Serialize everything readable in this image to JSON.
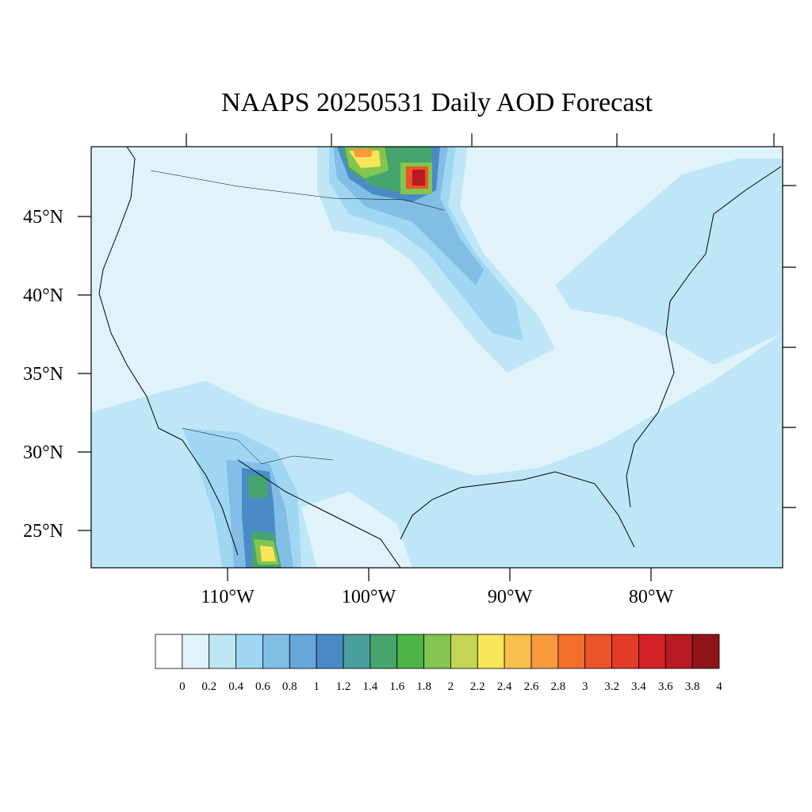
{
  "title": "NAAPS 20250531 Daily AOD Forecast",
  "latitude_labels": [
    "45°N",
    "40°N",
    "35°N",
    "30°N",
    "25°N"
  ],
  "longitude_labels": [
    "110°W",
    "100°W",
    "90°W",
    "80°W"
  ],
  "colorbar": {
    "levels": [
      0,
      0.2,
      0.4,
      0.6,
      0.8,
      1,
      1.2,
      1.4,
      1.6,
      1.8,
      2,
      2.2,
      2.4,
      2.6,
      2.8,
      3,
      3.2,
      3.4,
      3.6,
      3.8,
      4
    ],
    "colors": [
      "#ffffff",
      "#e0f3fb",
      "#bfe6f7",
      "#9fd7f3",
      "#82bde6",
      "#67a7da",
      "#4a8bc7",
      "#4b9e9e",
      "#46a56d",
      "#4db446",
      "#84c450",
      "#c2d654",
      "#f7e657",
      "#f8c04b",
      "#f79a3e",
      "#f36e2b",
      "#ea5428",
      "#e23b27",
      "#d52027",
      "#b81a22",
      "#8e1519"
    ]
  }
}
